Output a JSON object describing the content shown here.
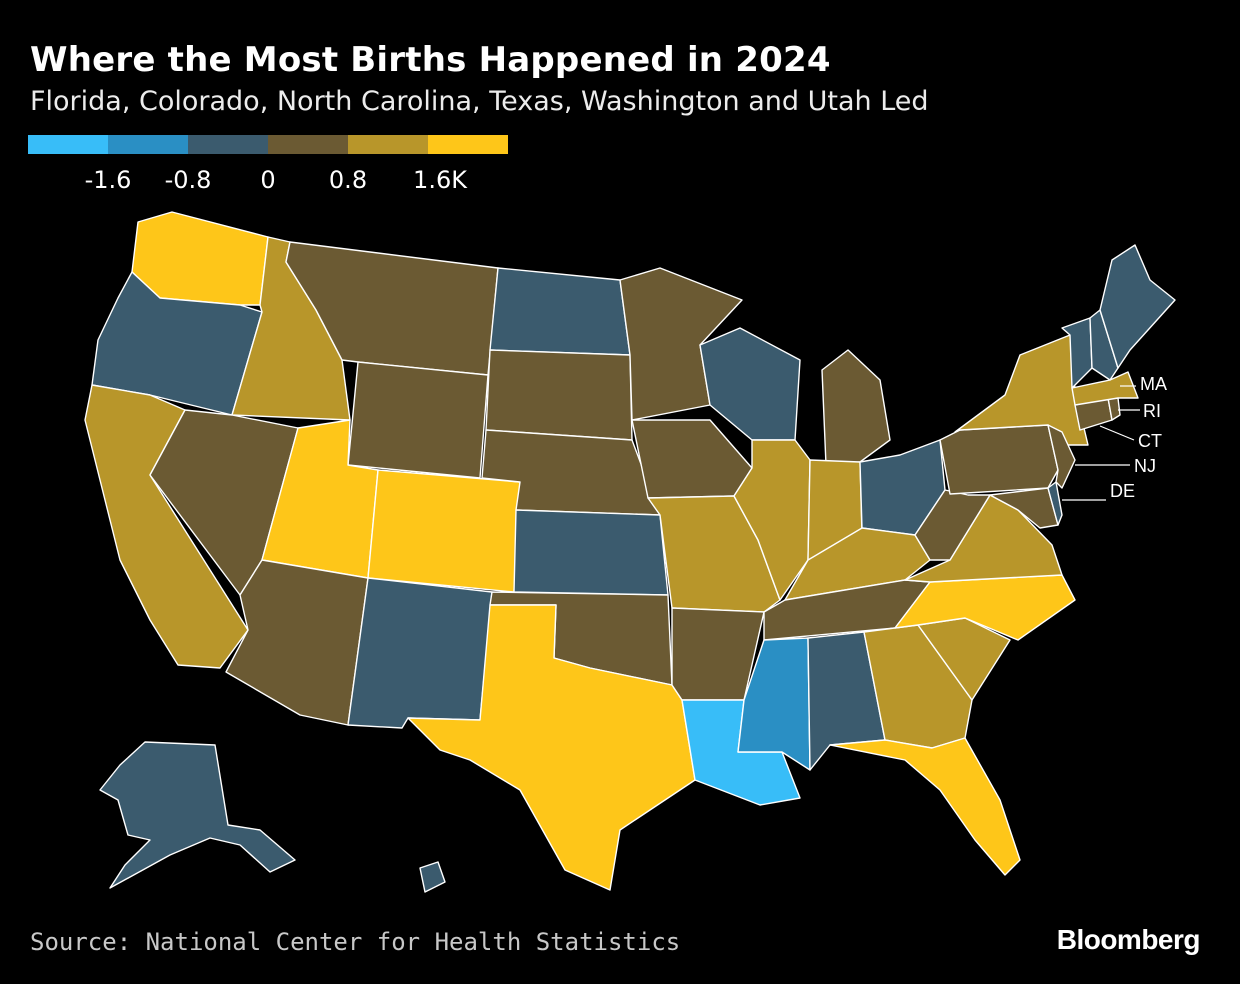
{
  "header": {
    "title": "Where the Most Births Happened in 2024",
    "subtitle": "Florida, Colorado, North Carolina, Texas, Washington and Utah Led"
  },
  "legend": {
    "colors": [
      "#38bdf8",
      "#2a8fc4",
      "#3b5b6e",
      "#6b5a33",
      "#b8962a",
      "#fec619"
    ],
    "labels": [
      "-1.6",
      "-0.8",
      "0",
      "0.8",
      "1.6K"
    ]
  },
  "callouts": [
    "MA",
    "RI",
    "CT",
    "NJ",
    "DE"
  ],
  "footer": {
    "source": "Source: National Center for Health Statistics",
    "brand": "Bloomberg"
  },
  "states": [
    {
      "code": "WA",
      "color": "#fec619"
    },
    {
      "code": "OR",
      "color": "#3b5b6e"
    },
    {
      "code": "CA",
      "color": "#b8962a"
    },
    {
      "code": "ID",
      "color": "#b8962a"
    },
    {
      "code": "NV",
      "color": "#6b5a33"
    },
    {
      "code": "MT",
      "color": "#6b5a33"
    },
    {
      "code": "WY",
      "color": "#6b5a33"
    },
    {
      "code": "UT",
      "color": "#fec619"
    },
    {
      "code": "AZ",
      "color": "#6b5a33"
    },
    {
      "code": "CO",
      "color": "#fec619"
    },
    {
      "code": "NM",
      "color": "#3b5b6e"
    },
    {
      "code": "ND",
      "color": "#3b5b6e"
    },
    {
      "code": "SD",
      "color": "#6b5a33"
    },
    {
      "code": "NE",
      "color": "#6b5a33"
    },
    {
      "code": "KS",
      "color": "#3b5b6e"
    },
    {
      "code": "OK",
      "color": "#6b5a33"
    },
    {
      "code": "TX",
      "color": "#fec619"
    },
    {
      "code": "MN",
      "color": "#6b5a33"
    },
    {
      "code": "IA",
      "color": "#6b5a33"
    },
    {
      "code": "MO",
      "color": "#b8962a"
    },
    {
      "code": "AR",
      "color": "#6b5a33"
    },
    {
      "code": "LA",
      "color": "#38bdf8"
    },
    {
      "code": "WI",
      "color": "#3b5b6e"
    },
    {
      "code": "IL",
      "color": "#b8962a"
    },
    {
      "code": "MI",
      "color": "#6b5a33"
    },
    {
      "code": "IN",
      "color": "#b8962a"
    },
    {
      "code": "OH",
      "color": "#3b5b6e"
    },
    {
      "code": "KY",
      "color": "#b8962a"
    },
    {
      "code": "TN",
      "color": "#6b5a33"
    },
    {
      "code": "MS",
      "color": "#2a8fc4"
    },
    {
      "code": "AL",
      "color": "#3b5b6e"
    },
    {
      "code": "GA",
      "color": "#b8962a"
    },
    {
      "code": "FL",
      "color": "#fec619"
    },
    {
      "code": "SC",
      "color": "#b8962a"
    },
    {
      "code": "NC",
      "color": "#fec619"
    },
    {
      "code": "VA",
      "color": "#b8962a"
    },
    {
      "code": "WV",
      "color": "#6b5a33"
    },
    {
      "code": "PA",
      "color": "#6b5a33"
    },
    {
      "code": "NY",
      "color": "#b8962a"
    },
    {
      "code": "MD",
      "color": "#6b5a33"
    },
    {
      "code": "DE",
      "color": "#3b5b6e"
    },
    {
      "code": "NJ",
      "color": "#6b5a33"
    },
    {
      "code": "CT",
      "color": "#6b5a33"
    },
    {
      "code": "RI",
      "color": "#6b5a33"
    },
    {
      "code": "MA",
      "color": "#b8962a"
    },
    {
      "code": "VT",
      "color": "#3b5b6e"
    },
    {
      "code": "NH",
      "color": "#3b5b6e"
    },
    {
      "code": "ME",
      "color": "#3b5b6e"
    },
    {
      "code": "AK",
      "color": "#3b5b6e"
    },
    {
      "code": "HI",
      "color": "#3b5b6e"
    }
  ]
}
